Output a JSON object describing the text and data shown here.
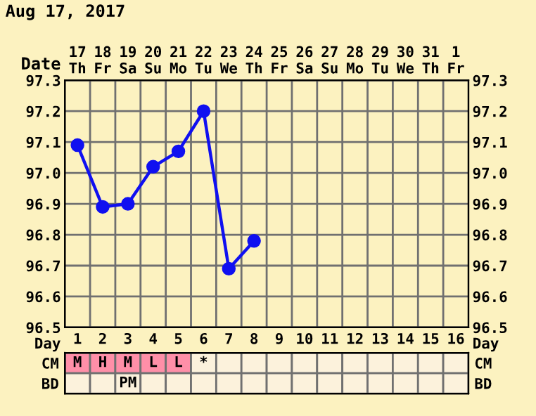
{
  "chart_data": [
    {
      "type": "line",
      "title": "Aug 17, 2017",
      "xlabel": "Date",
      "categories": [
        "17\nTh",
        "18\nFr",
        "19\nSa",
        "20\nSu",
        "21\nMo",
        "22\nTu",
        "23\nWe",
        "24\nTh",
        "25\nFr",
        "26\nSa",
        "27\nSu",
        "28\nMo",
        "29\nTu",
        "30\nWe",
        "31\nTh",
        "1\nFr"
      ],
      "series": [
        {
          "color": "#1010f0",
          "values": [
            97.09,
            96.89,
            96.9,
            97.02,
            97.07,
            97.2,
            96.69,
            96.78,
            null,
            null,
            null,
            null,
            null,
            null,
            null,
            null
          ]
        }
      ],
      "ylim": [
        96.5,
        97.3
      ],
      "yticks": [
        96.5,
        96.6,
        96.7,
        96.8,
        96.9,
        {
          "value": 97,
          "label": "97.0"
        },
        97.1,
        97.2,
        97.3
      ],
      "y2lim": [
        96.5,
        97.3
      ],
      "y2ticks": [
        96.5,
        96.6,
        96.7,
        96.8,
        96.9,
        {
          "value": 97,
          "label": "97.0"
        },
        97.1,
        97.2,
        97.3
      ],
      "grid": true,
      "marker": "circle",
      "line_style": "solid",
      "legend": false
    },
    {
      "type": "heatmap",
      "xlabel": "Day",
      "categories": [
        "1",
        "2",
        "3",
        "4",
        "5",
        "6",
        "7",
        "8",
        "9",
        "10",
        "11",
        "12",
        "13",
        "14",
        "15",
        "16"
      ],
      "y_categories": [
        "CM",
        "BD"
      ],
      "y2_categories": [
        "CM",
        "BD"
      ],
      "cells": [
        [
          null,
          null,
          null,
          null,
          null,
          null,
          null,
          null,
          null,
          null,
          null,
          null,
          null,
          null,
          null,
          null
        ],
        [
          null,
          null,
          null,
          null,
          null,
          null,
          null,
          null,
          null,
          null,
          null,
          null,
          null,
          null,
          null,
          null
        ]
      ],
      "cell_labels": [
        [
          "M",
          "H",
          "M",
          "L",
          "L",
          "*",
          null,
          null,
          null,
          null,
          null,
          null,
          null,
          null,
          null,
          null
        ],
        [
          null,
          null,
          "PM",
          null,
          null,
          null,
          null,
          null,
          null,
          null,
          null,
          null,
          null,
          null,
          null,
          null
        ]
      ],
      "colors": [
        [
          "#ff8fa8",
          "#ff8fa8",
          "#ff8fa8",
          "#ff8fa8",
          "#ff8fa8",
          "#fcf2dc",
          "#fcf2dc",
          "#fcf2dc",
          "#fcf2dc",
          "#fcf2dc",
          "#fcf2dc",
          "#fcf2dc",
          "#fcf2dc",
          "#fcf2dc",
          "#fcf2dc",
          "#fcf2dc"
        ],
        [
          "#fcf2dc",
          "#fcf2dc",
          "#fcf2dc",
          "#fcf2dc",
          "#fcf2dc",
          "#fcf2dc",
          "#fcf2dc",
          "#fcf2dc",
          "#fcf2dc",
          "#fcf2dc",
          "#fcf2dc",
          "#fcf2dc",
          "#fcf2dc",
          "#fcf2dc",
          "#fcf2dc",
          "#fcf2dc"
        ]
      ]
    }
  ]
}
